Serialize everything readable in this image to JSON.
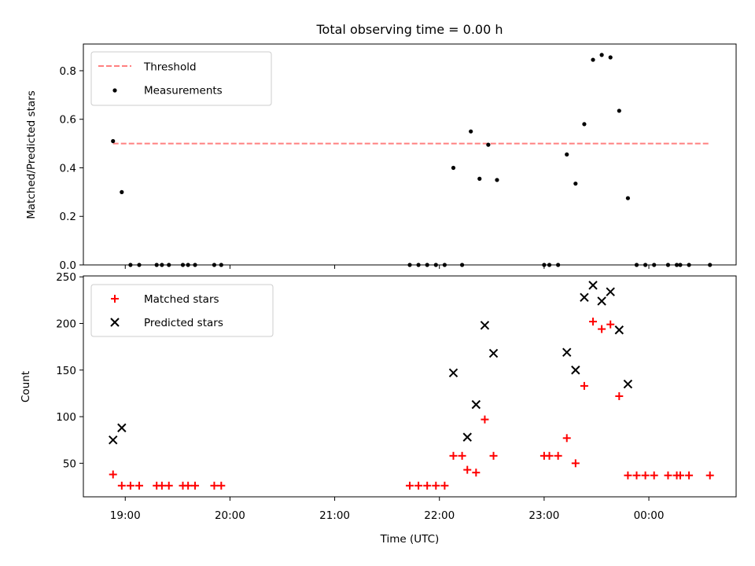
{
  "chart_data": [
    {
      "type": "scatter",
      "title": "Total observing time = 0.00 h",
      "xlabel": "",
      "ylabel": "Matched/Predicted stars",
      "ylim": [
        0,
        0.91
      ],
      "yticks": [
        "0.0",
        "0.2",
        "0.4",
        "0.6",
        "0.8"
      ],
      "grid": false,
      "legend_position": "top-left",
      "legend": [
        "Threshold",
        "Measurements"
      ],
      "threshold": {
        "name": "Threshold",
        "value": 0.5,
        "x_range": [
          "18:53",
          "00:35"
        ],
        "color": "#ff8080"
      },
      "series": [
        {
          "name": "Measurements",
          "marker": "dot",
          "color": "#000000",
          "points": [
            [
              "18:53",
              0.51
            ],
            [
              "18:58",
              0.3
            ],
            [
              "19:03",
              0.0
            ],
            [
              "19:08",
              0.0
            ],
            [
              "19:18",
              0.0
            ],
            [
              "19:21",
              0.0
            ],
            [
              "19:25",
              0.0
            ],
            [
              "19:33",
              0.0
            ],
            [
              "19:36",
              0.0
            ],
            [
              "19:40",
              0.0
            ],
            [
              "19:51",
              0.0
            ],
            [
              "19:55",
              0.0
            ],
            [
              "21:43",
              0.0
            ],
            [
              "21:48",
              0.0
            ],
            [
              "21:53",
              0.0
            ],
            [
              "21:58",
              0.0
            ],
            [
              "22:03",
              0.0
            ],
            [
              "22:08",
              0.4
            ],
            [
              "22:13",
              0.0
            ],
            [
              "22:18",
              0.55
            ],
            [
              "22:23",
              0.355
            ],
            [
              "22:28",
              0.495
            ],
            [
              "22:33",
              0.35
            ],
            [
              "23:00",
              0.0
            ],
            [
              "23:03",
              0.0
            ],
            [
              "23:08",
              0.0
            ],
            [
              "23:13",
              0.455
            ],
            [
              "23:18",
              0.335
            ],
            [
              "23:23",
              0.58
            ],
            [
              "23:28",
              0.845
            ],
            [
              "23:33",
              0.865
            ],
            [
              "23:38",
              0.855
            ],
            [
              "23:43",
              0.635
            ],
            [
              "23:48",
              0.275
            ],
            [
              "23:53",
              0.0
            ],
            [
              "23:58",
              0.0
            ],
            [
              "00:03",
              0.0
            ],
            [
              "00:11",
              0.0
            ],
            [
              "00:16",
              0.0
            ],
            [
              "00:18",
              0.0
            ],
            [
              "00:23",
              0.0
            ],
            [
              "00:35",
              0.0
            ]
          ]
        }
      ]
    },
    {
      "type": "scatter",
      "title": "",
      "xlabel": "Time (UTC)",
      "ylabel": "Count",
      "ylim": [
        14,
        251
      ],
      "yticks": [
        "50",
        "100",
        "150",
        "200",
        "250"
      ],
      "xticks": [
        "19:00",
        "20:00",
        "21:00",
        "22:00",
        "23:00",
        "00:00"
      ],
      "grid": false,
      "legend_position": "top-left",
      "legend": [
        "Matched stars",
        "Predicted stars"
      ],
      "series": [
        {
          "name": "Matched stars",
          "marker": "plus",
          "color": "#ff0000",
          "points": [
            [
              "18:53",
              38
            ],
            [
              "18:58",
              26
            ],
            [
              "19:03",
              26
            ],
            [
              "19:08",
              26
            ],
            [
              "19:18",
              26
            ],
            [
              "19:21",
              26
            ],
            [
              "19:25",
              26
            ],
            [
              "19:33",
              26
            ],
            [
              "19:36",
              26
            ],
            [
              "19:40",
              26
            ],
            [
              "19:51",
              26
            ],
            [
              "19:55",
              26
            ],
            [
              "21:43",
              26
            ],
            [
              "21:48",
              26
            ],
            [
              "21:53",
              26
            ],
            [
              "21:58",
              26
            ],
            [
              "22:03",
              26
            ],
            [
              "22:08",
              58
            ],
            [
              "22:13",
              58
            ],
            [
              "22:16",
              43
            ],
            [
              "22:21",
              40
            ],
            [
              "22:26",
              97
            ],
            [
              "22:31",
              58
            ],
            [
              "23:00",
              58
            ],
            [
              "23:03",
              58
            ],
            [
              "23:08",
              58
            ],
            [
              "23:13",
              77
            ],
            [
              "23:18",
              50
            ],
            [
              "23:23",
              133
            ],
            [
              "23:28",
              202
            ],
            [
              "23:33",
              194
            ],
            [
              "23:38",
              199
            ],
            [
              "23:43",
              122
            ],
            [
              "23:48",
              37
            ],
            [
              "23:53",
              37
            ],
            [
              "23:58",
              37
            ],
            [
              "00:03",
              37
            ],
            [
              "00:11",
              37
            ],
            [
              "00:16",
              37
            ],
            [
              "00:18",
              37
            ],
            [
              "00:23",
              37
            ],
            [
              "00:35",
              37
            ]
          ]
        },
        {
          "name": "Predicted stars",
          "marker": "x",
          "color": "#000000",
          "points": [
            [
              "18:53",
              75
            ],
            [
              "18:58",
              88
            ],
            [
              "22:08",
              147
            ],
            [
              "22:16",
              78
            ],
            [
              "22:21",
              113
            ],
            [
              "22:26",
              198
            ],
            [
              "22:31",
              168
            ],
            [
              "23:13",
              169
            ],
            [
              "23:18",
              150
            ],
            [
              "23:23",
              228
            ],
            [
              "23:28",
              241
            ],
            [
              "23:33",
              224
            ],
            [
              "23:38",
              234
            ],
            [
              "23:43",
              193
            ],
            [
              "23:48",
              135
            ]
          ]
        }
      ]
    }
  ]
}
